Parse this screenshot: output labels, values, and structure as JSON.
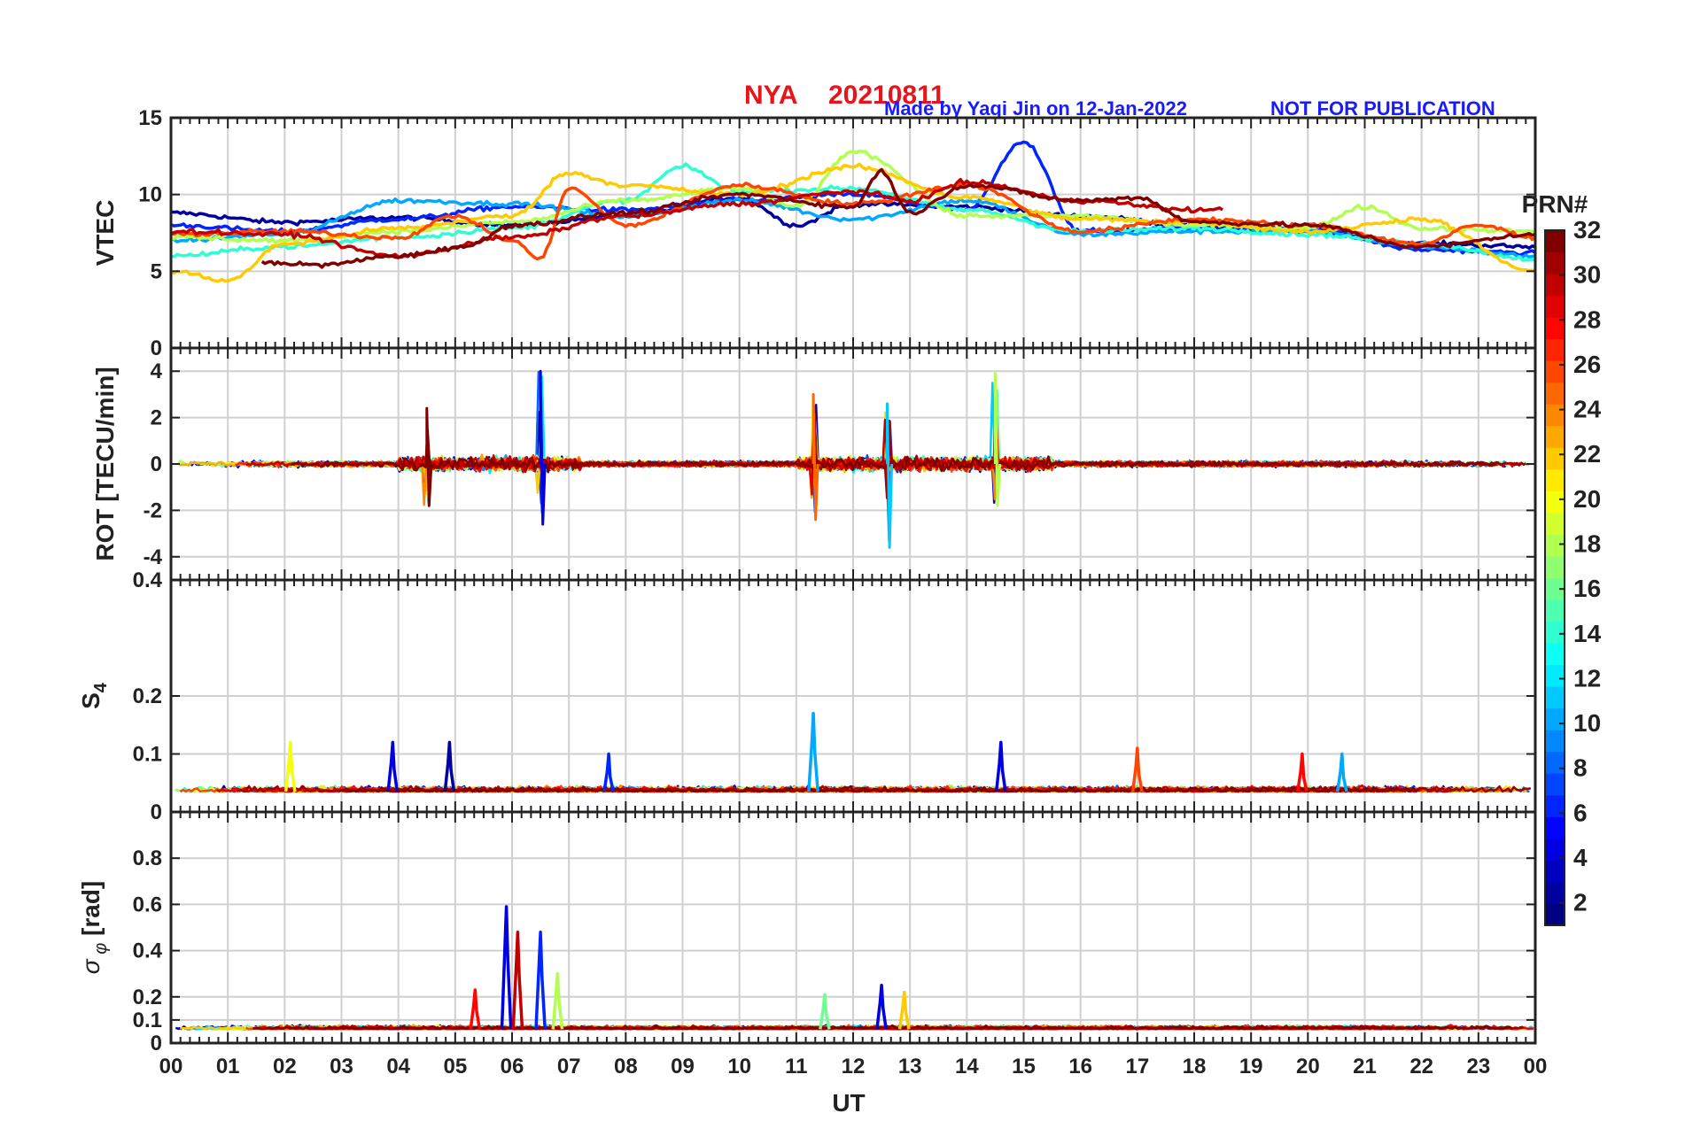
{
  "header": {
    "station": "NYA",
    "date": "20210811",
    "credit": "Made by Yaqi Jin on 12-Jan-2022",
    "notice": "NOT FOR PUBLICATION"
  },
  "colors": {
    "title": "#e8141c",
    "credit": "#1a1aff",
    "grid": "#d0d0d0",
    "axis": "#222222"
  },
  "colorbar": {
    "title": "PRN#",
    "min": 1,
    "max": 32,
    "ticks": [
      2,
      4,
      6,
      8,
      10,
      12,
      14,
      16,
      18,
      20,
      22,
      24,
      26,
      28,
      30,
      32
    ],
    "colormap": "jet"
  },
  "x_axis": {
    "label": "UT",
    "ticks": [
      "00",
      "01",
      "02",
      "03",
      "04",
      "05",
      "06",
      "07",
      "08",
      "09",
      "10",
      "11",
      "12",
      "13",
      "14",
      "15",
      "16",
      "17",
      "18",
      "19",
      "20",
      "21",
      "22",
      "23",
      "00"
    ]
  },
  "chart_data": [
    {
      "type": "line",
      "panel": "vtec",
      "ylabel": "VTEC",
      "ylim": [
        0,
        15
      ],
      "yticks": [
        0,
        5,
        10,
        15
      ],
      "grid": true,
      "series_note_levels": [
        {
          "prn": 2,
          "hours": [
            0,
            2,
            4,
            6,
            8,
            10,
            11,
            12,
            14,
            16,
            18,
            20,
            22,
            24
          ],
          "values": [
            8.8,
            8.2,
            8.5,
            8.0,
            8.6,
            9.8,
            8.0,
            9.4,
            9.2,
            8.6,
            8.0,
            7.6,
            6.8,
            6.6
          ]
        },
        {
          "prn": 6,
          "hours": [
            0,
            2,
            4,
            6,
            8,
            10,
            12,
            14,
            15,
            16,
            18,
            20,
            22,
            24
          ],
          "values": [
            8.0,
            7.6,
            8.4,
            9.2,
            9.0,
            9.6,
            10.0,
            9.0,
            13.4,
            7.6,
            7.8,
            7.8,
            6.4,
            6.2
          ]
        },
        {
          "prn": 10,
          "hours": [
            0,
            2,
            4,
            6,
            8,
            10,
            12,
            14,
            16,
            18,
            20,
            22,
            24
          ],
          "values": [
            7.0,
            7.4,
            9.6,
            9.4,
            8.6,
            9.6,
            8.4,
            9.6,
            7.4,
            7.6,
            7.6,
            6.6,
            6.0
          ]
        },
        {
          "prn": 14,
          "hours": [
            0,
            2,
            4,
            6,
            8,
            9,
            10,
            12,
            14,
            16,
            18,
            20,
            22,
            24
          ],
          "values": [
            6.0,
            6.6,
            7.2,
            7.8,
            9.6,
            11.8,
            10.2,
            10.4,
            9.0,
            7.6,
            7.8,
            7.4,
            6.8,
            5.8
          ]
        },
        {
          "prn": 18,
          "hours": [
            0,
            2,
            4,
            6,
            8,
            10,
            11,
            12,
            14,
            16,
            18,
            20,
            21,
            22,
            24
          ],
          "values": [
            7.2,
            7.0,
            7.6,
            8.2,
            9.6,
            10.4,
            9.2,
            12.8,
            8.6,
            8.6,
            8.0,
            7.8,
            9.2,
            7.8,
            7.6
          ]
        },
        {
          "prn": 22,
          "hours": [
            0,
            1,
            2,
            4,
            6,
            7,
            8,
            10,
            12,
            14,
            16,
            18,
            20,
            22,
            24
          ],
          "values": [
            5.0,
            4.4,
            6.8,
            7.8,
            8.6,
            11.4,
            10.6,
            10.0,
            11.8,
            9.8,
            8.4,
            8.2,
            7.6,
            8.4,
            5.0
          ]
        },
        {
          "prn": 26,
          "hours": [
            0,
            2,
            4,
            5,
            6,
            6.5,
            7,
            8,
            10,
            12,
            14,
            16,
            18,
            20,
            22,
            23,
            24
          ],
          "values": [
            7.4,
            7.6,
            7.2,
            8.6,
            7.0,
            5.8,
            10.4,
            8.0,
            10.6,
            9.4,
            10.6,
            7.6,
            8.4,
            8.0,
            6.8,
            8.0,
            7.2
          ]
        },
        {
          "prn": 30,
          "hours": [
            0,
            2,
            4,
            6,
            8,
            10,
            12,
            13,
            14,
            16,
            18,
            18.5
          ],
          "values": [
            7.6,
            7.4,
            6.0,
            7.2,
            8.6,
            9.4,
            10.2,
            9.6,
            10.8,
            9.6,
            9.0,
            9.0
          ]
        },
        {
          "prn": 32,
          "hours": [
            1.6,
            2.6,
            4,
            5.2,
            6,
            8,
            10,
            12,
            12.5,
            13,
            14,
            16,
            17,
            18,
            20,
            22,
            24
          ],
          "values": [
            5.6,
            5.4,
            6.0,
            6.6,
            8.0,
            8.8,
            10.0,
            9.2,
            11.5,
            8.8,
            10.6,
            9.6,
            9.8,
            8.2,
            8.0,
            6.6,
            7.4
          ]
        }
      ]
    },
    {
      "type": "line",
      "panel": "rot",
      "ylabel": "ROT [TECU/min]",
      "ylim": [
        -5,
        5
      ],
      "yticks": [
        -4,
        -2,
        0,
        2,
        4
      ],
      "grid": true,
      "peaks": [
        {
          "hour": 6.5,
          "max": 4.0,
          "min": -2.6
        },
        {
          "hour": 12.6,
          "max": 2.6,
          "min": -3.6
        },
        {
          "hour": 14.5,
          "max": 3.9,
          "min": -1.8
        },
        {
          "hour": 11.3,
          "max": 3.0,
          "min": -2.4
        },
        {
          "hour": 4.5,
          "max": 2.4,
          "min": -1.8
        }
      ]
    },
    {
      "type": "line",
      "panel": "s4",
      "ylabel": "S4",
      "ylim": [
        0,
        0.4
      ],
      "yticks": [
        0,
        0.1,
        0.2,
        0.4
      ],
      "grid": true,
      "base_level": 0.035,
      "peaks": [
        {
          "hour": 2.1,
          "value": 0.12,
          "prn": 20
        },
        {
          "hour": 3.9,
          "value": 0.12,
          "prn": 4
        },
        {
          "hour": 4.9,
          "value": 0.12,
          "prn": 2
        },
        {
          "hour": 7.7,
          "value": 0.1,
          "prn": 6
        },
        {
          "hour": 11.3,
          "value": 0.17,
          "prn": 10
        },
        {
          "hour": 14.6,
          "value": 0.12,
          "prn": 4
        },
        {
          "hour": 17.0,
          "value": 0.11,
          "prn": 26
        },
        {
          "hour": 19.9,
          "value": 0.1,
          "prn": 28
        },
        {
          "hour": 20.6,
          "value": 0.1,
          "prn": 10
        }
      ]
    },
    {
      "type": "line",
      "panel": "sigma_phi",
      "ylabel": "σ φ [rad]",
      "ylim": [
        0,
        1
      ],
      "yticks": [
        0,
        0.1,
        0.2,
        0.4,
        0.6,
        0.8
      ],
      "grid": true,
      "base_level": 0.06,
      "peaks": [
        {
          "hour": 5.9,
          "value": 0.59,
          "prn": 4
        },
        {
          "hour": 6.1,
          "value": 0.48,
          "prn": 30
        },
        {
          "hour": 6.5,
          "value": 0.48,
          "prn": 6
        },
        {
          "hour": 6.8,
          "value": 0.3,
          "prn": 18
        },
        {
          "hour": 5.35,
          "value": 0.23,
          "prn": 28
        },
        {
          "hour": 12.5,
          "value": 0.25,
          "prn": 4
        },
        {
          "hour": 12.9,
          "value": 0.22,
          "prn": 22
        },
        {
          "hour": 11.5,
          "value": 0.21,
          "prn": 16
        }
      ]
    }
  ]
}
